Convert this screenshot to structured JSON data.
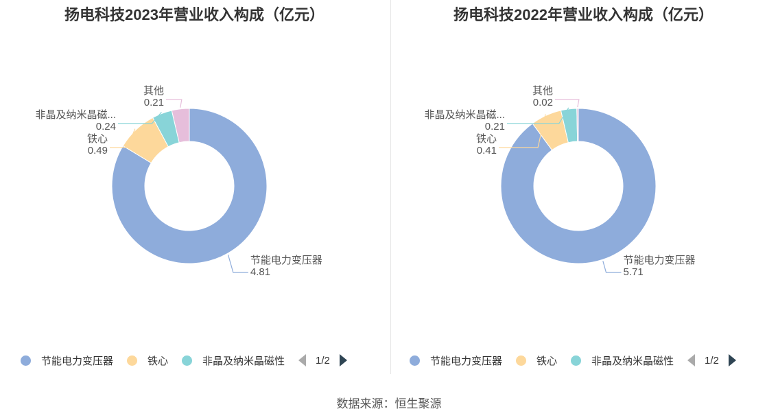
{
  "source_label": "数据来源：恒生聚源",
  "chart_data": [
    {
      "type": "pie",
      "title": "扬电科技2023年营业收入构成（亿元）",
      "slices": [
        {
          "label": "节能电力变压器",
          "chart_label": "节能电力变压器",
          "value": 4.81,
          "value_text": "4.81",
          "color": "#8eacdb"
        },
        {
          "label": "铁心",
          "chart_label": "铁心",
          "value": 0.49,
          "value_text": "0.49",
          "color": "#fdd89b"
        },
        {
          "label": "非晶及纳米晶磁性",
          "chart_label": "非晶及纳米晶磁...",
          "value": 0.24,
          "value_text": "0.24",
          "color": "#88d4d8"
        },
        {
          "label": "其他",
          "chart_label": "其他",
          "value": 0.21,
          "value_text": "0.21",
          "color": "#e6bedb"
        }
      ],
      "legend": {
        "pager": "1/2",
        "placement": "bottom-left"
      }
    },
    {
      "type": "pie",
      "title": "扬电科技2022年营业收入构成（亿元）",
      "slices": [
        {
          "label": "节能电力变压器",
          "chart_label": "节能电力变压器",
          "value": 5.71,
          "value_text": "5.71",
          "color": "#8eacdb"
        },
        {
          "label": "铁心",
          "chart_label": "铁心",
          "value": 0.41,
          "value_text": "0.41",
          "color": "#fdd89b"
        },
        {
          "label": "非晶及纳米晶磁性",
          "chart_label": "非晶及纳米晶磁...",
          "value": 0.21,
          "value_text": "0.21",
          "color": "#88d4d8"
        },
        {
          "label": "其他",
          "chart_label": "其他",
          "value": 0.02,
          "value_text": "0.02",
          "color": "#e6bedb"
        }
      ],
      "legend": {
        "pager": "1/2",
        "placement": "bottom-left"
      }
    }
  ]
}
